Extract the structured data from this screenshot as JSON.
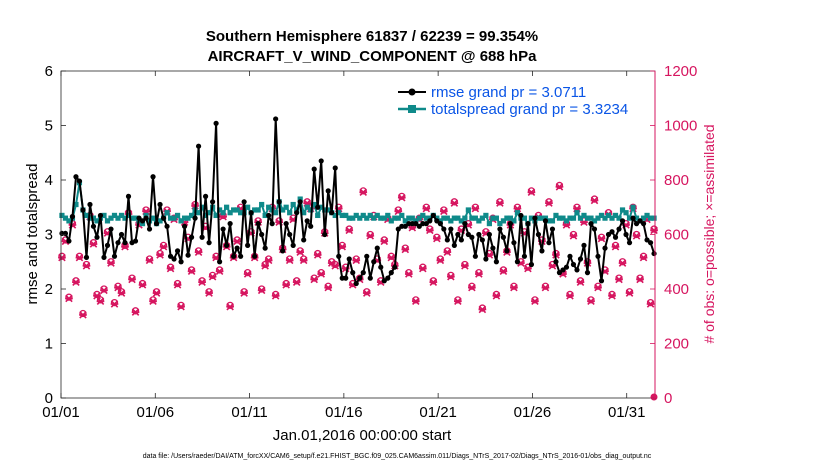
{
  "chart_data": {
    "type": "line",
    "title_line1": "Southern Hemisphere 61837 / 62239 = 99.354%",
    "title_line2": "AIRCRAFT_V_WIND_COMPONENT @ 688 hPa",
    "xlabel": "Jan.01,2016 00:00:00 start",
    "ylabel_left": "rmse and totalspread",
    "ylabel_right": "# of obs: o=possible; ×=assimilated",
    "footnote": "data file: /Users/raeder/DAI/ATM_forcXX/CAM6_setup/f.e21.FHIST_BGC.f09_025.CAM6assim.011/Diags_NTrS_2017-02/Diags_NTrS_2016-01/obs_diag_output.nc",
    "xlim": [
      0,
      31.5
    ],
    "ylim_left": [
      0,
      6
    ],
    "ylim_right": [
      0,
      1200
    ],
    "x_ticks": [
      0,
      5,
      10,
      15,
      20,
      25,
      30
    ],
    "x_tick_labels": [
      "01/01",
      "01/06",
      "01/11",
      "01/16",
      "01/21",
      "01/26",
      "01/31"
    ],
    "y_left_ticks": [
      "0",
      "1",
      "2",
      "3",
      "4",
      "5",
      "6"
    ],
    "y_right_ticks": [
      "0",
      "200",
      "400",
      "600",
      "800",
      "1000",
      "1200"
    ],
    "colors": {
      "rmse": "#000000",
      "spread": "#0f8a8a",
      "obs": "#d6155f",
      "legend_text": "#0a55e6"
    },
    "series": [
      {
        "name": "rmse grand pr = 3.0711",
        "color": "#000000",
        "values": [
          3.02,
          3.02,
          2.88,
          3.33,
          4.06,
          3.98,
          3.45,
          2.58,
          3.55,
          3.15,
          2.95,
          3.35,
          2.58,
          2.8,
          3.1,
          2.6,
          2.85,
          3.0,
          2.85,
          3.7,
          2.85,
          2.88,
          3.3,
          3.25,
          3.3,
          3.1,
          4.06,
          3.2,
          3.55,
          3.3,
          3.15,
          2.6,
          2.55,
          2.7,
          2.5,
          3.15,
          2.62,
          2.95,
          3.3,
          4.62,
          2.95,
          3.7,
          2.85,
          3.6,
          5.04,
          2.5,
          3.1,
          2.8,
          3.2,
          2.6,
          2.75,
          2.6,
          3.6,
          2.8,
          3.4,
          2.6,
          3.2,
          3.0,
          2.75,
          3.35,
          3.2,
          5.12,
          3.6,
          2.7,
          3.2,
          3.0,
          2.8,
          3.4,
          3.6,
          2.9,
          3.25,
          3.15,
          4.2,
          3.5,
          4.35,
          3.0,
          3.8,
          3.4,
          4.22,
          2.6,
          2.2,
          2.2,
          2.55,
          2.3,
          2.1,
          2.2,
          2.3,
          2.6,
          2.2,
          2.5,
          2.75,
          2.4,
          2.15,
          2.2,
          2.3,
          2.4,
          3.1,
          3.15,
          3.15,
          3.2,
          3.2,
          3.2,
          3.15,
          3.2,
          3.2,
          3.25,
          3.35,
          3.25,
          3.2,
          3.1,
          2.9,
          3.1,
          2.8,
          3.0,
          2.9,
          3.2,
          3.0,
          2.95,
          2.6,
          3.0,
          2.9,
          2.55,
          3.0,
          2.75,
          2.5,
          3.1,
          2.95,
          2.7,
          3.2,
          2.85,
          2.5,
          3.35,
          2.6,
          3.2,
          2.45,
          3.3,
          3.0,
          2.7,
          3.25,
          2.85,
          3.1,
          2.5,
          2.3,
          2.35,
          2.4,
          2.6,
          2.45,
          2.35,
          2.55,
          2.8,
          2.3,
          3.2,
          3.1,
          2.6,
          2.15,
          2.75,
          3.0,
          3.05,
          2.95,
          3.1,
          3.25,
          3.0,
          2.85,
          3.3,
          3.2,
          3.25,
          3.2,
          2.9,
          2.85,
          2.65
        ]
      },
      {
        "name": "totalspread grand pr = 3.3234",
        "color": "#0f8a8a",
        "values": [
          3.35,
          3.3,
          3.25,
          3.3,
          3.55,
          3.95,
          3.45,
          3.35,
          3.3,
          3.3,
          3.25,
          3.3,
          3.35,
          3.25,
          3.3,
          3.35,
          3.3,
          3.35,
          3.3,
          3.35,
          3.3,
          3.3,
          3.25,
          3.2,
          3.35,
          3.25,
          3.3,
          3.2,
          3.25,
          3.3,
          3.4,
          3.3,
          3.3,
          3.35,
          3.25,
          3.3,
          3.3,
          3.35,
          3.45,
          3.4,
          3.5,
          3.35,
          3.4,
          3.5,
          3.35,
          3.45,
          3.4,
          3.5,
          3.4,
          3.45,
          3.45,
          3.4,
          3.4,
          3.5,
          3.4,
          3.45,
          3.45,
          3.55,
          3.35,
          3.5,
          3.45,
          3.4,
          3.6,
          3.45,
          3.5,
          3.4,
          3.55,
          3.45,
          3.65,
          3.4,
          3.5,
          3.45,
          3.55,
          3.35,
          3.5,
          3.45,
          3.45,
          3.4,
          3.35,
          3.4,
          3.35,
          3.35,
          3.3,
          3.3,
          3.35,
          3.3,
          3.35,
          3.3,
          3.35,
          3.3,
          3.35,
          3.3,
          3.3,
          3.35,
          3.25,
          3.3,
          3.3,
          3.35,
          3.25,
          3.3,
          3.3,
          3.25,
          3.3,
          3.35,
          3.3,
          3.3,
          3.35,
          3.3,
          3.25,
          3.3,
          3.3,
          3.25,
          3.3,
          3.3,
          3.25,
          3.3,
          3.45,
          3.3,
          3.3,
          3.25,
          3.3,
          3.35,
          3.2,
          3.3,
          3.3,
          3.2,
          3.25,
          3.3,
          3.3,
          3.25,
          3.4,
          3.3,
          3.3,
          3.2,
          3.3,
          3.25,
          3.3,
          3.3,
          3.3,
          3.25,
          3.25,
          3.35,
          3.3,
          3.3,
          3.25,
          3.3,
          3.3,
          3.4,
          3.3,
          3.35,
          3.3,
          3.3,
          3.25,
          3.3,
          3.35,
          3.3,
          3.35,
          3.3,
          3.35,
          3.3,
          3.45,
          3.4,
          3.3,
          3.5,
          3.3,
          3.25,
          3.3,
          3.35,
          3.3,
          3.3
        ]
      },
      {
        "name": "obs possible",
        "color": "#d6155f",
        "marker": "o",
        "values": [
          520,
          580,
          370,
          640,
          430,
          520,
          310,
          490,
          670,
          570,
          380,
          360,
          400,
          610,
          500,
          350,
          410,
          390,
          560,
          680,
          440,
          320,
          640,
          420,
          690,
          510,
          360,
          390,
          530,
          560,
          690,
          480,
          660,
          420,
          340,
          650,
          590,
          470,
          710,
          540,
          430,
          630,
          390,
          450,
          520,
          470,
          670,
          560,
          340,
          520,
          580,
          700,
          390,
          460,
          610,
          520,
          650,
          400,
          490,
          510,
          700,
          380,
          650,
          550,
          420,
          510,
          660,
          430,
          540,
          510,
          720,
          700,
          440,
          530,
          460,
          610,
          410,
          500,
          490,
          700,
          560,
          480,
          620,
          420,
          510,
          440,
          760,
          390,
          600,
          670,
          510,
          430,
          580,
          660,
          520,
          490,
          690,
          740,
          550,
          460,
          630,
          360,
          660,
          480,
          700,
          620,
          430,
          590,
          510,
          690,
          540,
          450,
          720,
          360,
          620,
          490,
          640,
          410,
          700,
          460,
          330,
          610,
          530,
          660,
          380,
          720,
          470,
          540,
          640,
          410,
          700,
          500,
          610,
          480,
          760,
          360,
          670,
          580,
          410,
          720,
          490,
          530,
          780,
          460,
          640,
          380,
          600,
          700,
          430,
          650,
          500,
          360,
          730,
          410,
          590,
          470,
          680,
          380,
          560,
          440,
          500,
          640,
          390,
          700,
          600,
          440,
          520,
          660,
          350,
          620
        ]
      },
      {
        "name": "obs assimilated",
        "color": "#d6155f",
        "marker": "x",
        "values": [
          515,
          575,
          365,
          635,
          425,
          515,
          305,
          485,
          665,
          565,
          375,
          355,
          395,
          605,
          495,
          345,
          405,
          385,
          555,
          675,
          435,
          315,
          635,
          415,
          685,
          505,
          355,
          385,
          525,
          555,
          685,
          475,
          655,
          415,
          335,
          645,
          585,
          465,
          705,
          535,
          425,
          625,
          385,
          445,
          515,
          465,
          665,
          555,
          335,
          515,
          575,
          695,
          385,
          455,
          605,
          515,
          645,
          395,
          485,
          505,
          695,
          375,
          645,
          545,
          415,
          505,
          655,
          425,
          535,
          505,
          715,
          695,
          435,
          525,
          455,
          605,
          405,
          495,
          485,
          695,
          555,
          475,
          615,
          415,
          505,
          435,
          755,
          385,
          595,
          665,
          505,
          425,
          575,
          655,
          515,
          485,
          685,
          735,
          545,
          455,
          625,
          355,
          655,
          475,
          695,
          615,
          425,
          585,
          505,
          685,
          535,
          445,
          715,
          355,
          615,
          485,
          635,
          405,
          695,
          455,
          325,
          605,
          525,
          655,
          375,
          715,
          465,
          535,
          635,
          405,
          695,
          495,
          605,
          475,
          755,
          355,
          665,
          575,
          405,
          715,
          485,
          525,
          775,
          455,
          635,
          375,
          595,
          695,
          425,
          645,
          495,
          355,
          725,
          405,
          585,
          465,
          675,
          375,
          555,
          435,
          495,
          635,
          385,
          695,
          595,
          435,
          515,
          655,
          345,
          615
        ]
      }
    ],
    "last_point_obs": 0,
    "legend_position": "top-right"
  }
}
